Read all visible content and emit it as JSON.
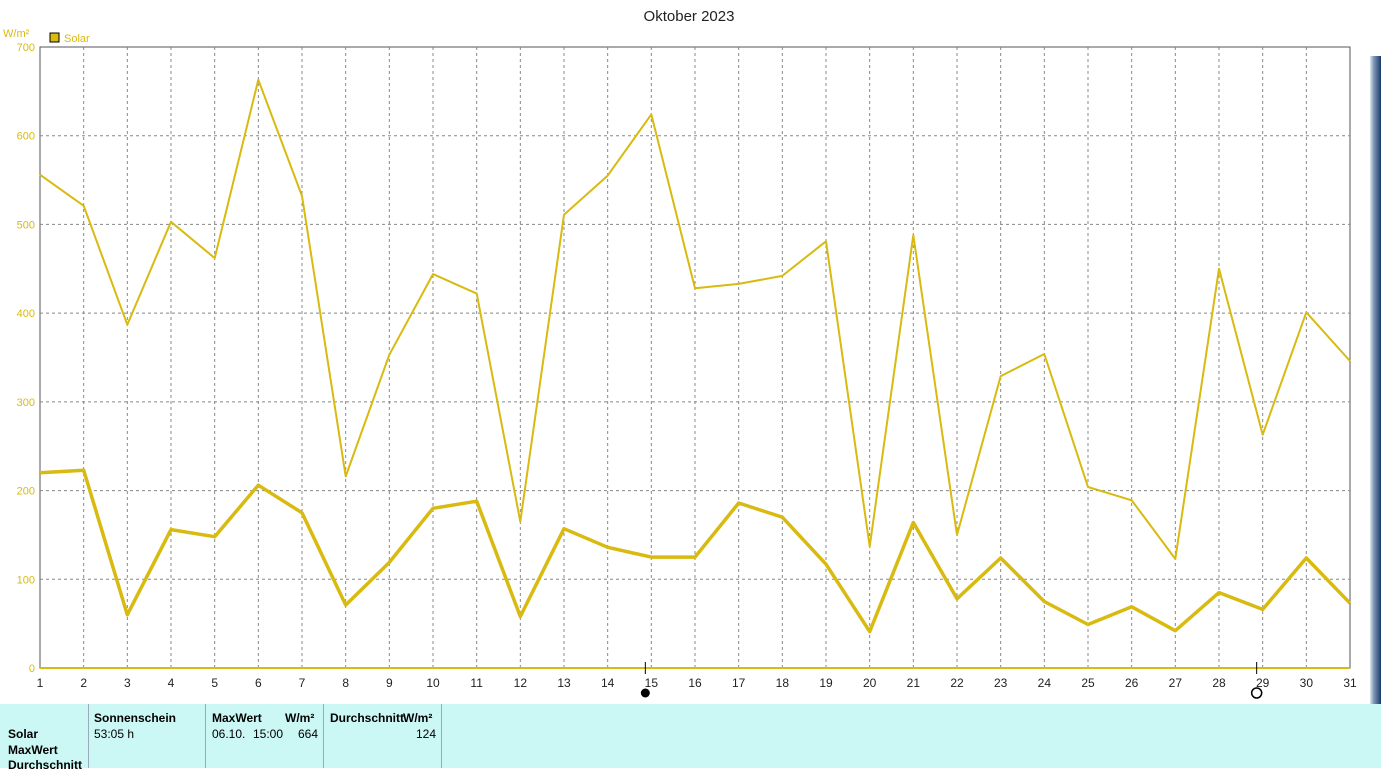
{
  "chart_data": {
    "type": "line",
    "title": "Oktober 2023",
    "ylabel": "W/m²",
    "legend": {
      "label": "Solar",
      "placement": "top-left"
    },
    "color": "#d8ba10",
    "x": [
      1,
      2,
      3,
      4,
      5,
      6,
      7,
      8,
      9,
      10,
      11,
      12,
      13,
      14,
      15,
      16,
      17,
      18,
      19,
      20,
      21,
      22,
      23,
      24,
      25,
      26,
      27,
      28,
      29,
      30,
      31
    ],
    "ylim": [
      0,
      700
    ],
    "yticks": [
      0,
      100,
      200,
      300,
      400,
      500,
      600,
      700
    ],
    "grid": true,
    "series": [
      {
        "name": "Solar MaxWert",
        "values": [
          556,
          521,
          387,
          503,
          462,
          663,
          532,
          216,
          353,
          444,
          422,
          165,
          511,
          555,
          624,
          428,
          433,
          442,
          481,
          137,
          488,
          150,
          329,
          354,
          204,
          189,
          123,
          450,
          263,
          401,
          346
        ]
      },
      {
        "name": "Solar Durchschnitt",
        "values": [
          220,
          223,
          60,
          156,
          148,
          206,
          175,
          71,
          119,
          180,
          188,
          58,
          157,
          136,
          125,
          125,
          186,
          170,
          117,
          41,
          164,
          78,
          124,
          75,
          49,
          69,
          42,
          85,
          66,
          124,
          73
        ]
      }
    ],
    "markers": [
      {
        "x": 15,
        "symbol": "full-moon"
      },
      {
        "x": 29,
        "symbol": "new-moon"
      }
    ]
  },
  "stats": {
    "row_labels": [
      "Solar",
      "MaxWert",
      "Durchschnitt"
    ],
    "col1": {
      "header": "Sonnenschein",
      "value": "53:05 h"
    },
    "col2": {
      "header": "MaxWert",
      "unit": "W/m²",
      "date": "06.10.",
      "time": "15:00",
      "value": "664"
    },
    "col3": {
      "header": "Durchschnitt",
      "unit": "W/m²",
      "value": "124"
    }
  }
}
